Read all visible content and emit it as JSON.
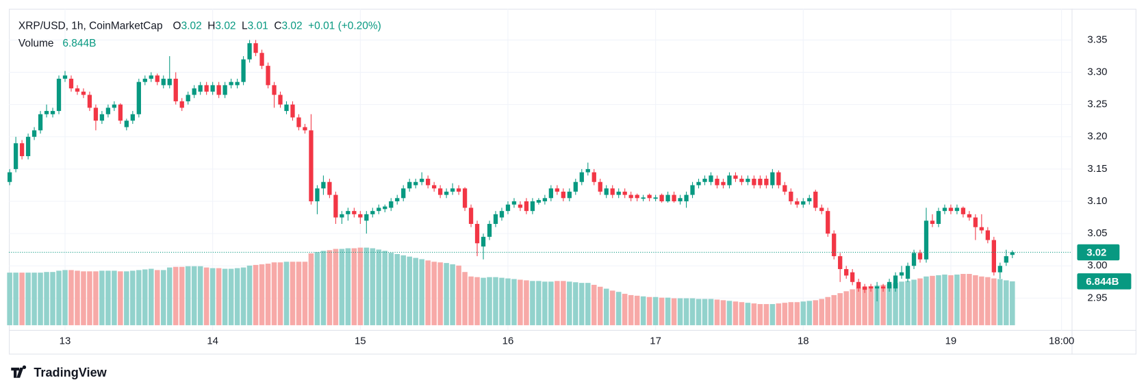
{
  "chart_data": {
    "type": "candlestick",
    "symbol": "XRP/USD, 1h, CoinMarketCap",
    "ohlc_header": [
      {
        "label": "O",
        "value": "3.02"
      },
      {
        "label": "H",
        "value": "3.02"
      },
      {
        "label": "L",
        "value": "3.01"
      },
      {
        "label": "C",
        "value": "3.02"
      }
    ],
    "change": "+0.01 (+0.20%)",
    "volume_title": "Volume",
    "volume_label": "6.844B",
    "last_price_label": "3.02",
    "brand": "TradingView",
    "up_color": "#089981",
    "down_color": "#f23645",
    "volume_up_color": "#92d2cc",
    "volume_down_color": "#f7a9a7",
    "grid": true,
    "xlim": [
      -0.12,
      172.7
    ],
    "xticks": [
      {
        "value": 9,
        "label": "13"
      },
      {
        "value": 33,
        "label": "14"
      },
      {
        "value": 57,
        "label": "15"
      },
      {
        "value": 81,
        "label": "16"
      },
      {
        "value": 105,
        "label": "17"
      },
      {
        "value": 129,
        "label": "18"
      },
      {
        "value": 153,
        "label": "19"
      },
      {
        "value": 171,
        "label": "18:00"
      }
    ],
    "ylim": [
      2.908,
      3.395
    ],
    "yticks": [
      2.95,
      {
        "value": 3,
        "label": "3.00"
      },
      3.05,
      {
        "value": 3.1,
        "label": "3.10"
      },
      3.15,
      {
        "value": 3.2,
        "label": "3.20"
      },
      3.25,
      {
        "value": 3.3,
        "label": "3.30"
      },
      3.35
    ],
    "volume_lim": [
      0,
      49
    ],
    "ohlc": [
      [
        3.13,
        3.15,
        3.125,
        3.145
      ],
      [
        3.15,
        3.2,
        3.145,
        3.19
      ],
      [
        3.19,
        3.195,
        3.165,
        3.17
      ],
      [
        3.17,
        3.205,
        3.165,
        3.2
      ],
      [
        3.2,
        3.215,
        3.195,
        3.21
      ],
      [
        3.21,
        3.24,
        3.205,
        3.235
      ],
      [
        3.235,
        3.25,
        3.23,
        3.24
      ],
      [
        3.235,
        3.245,
        3.23,
        3.24
      ],
      [
        3.24,
        3.295,
        3.235,
        3.29
      ],
      [
        3.29,
        3.302,
        3.285,
        3.295
      ],
      [
        3.29,
        3.295,
        3.27,
        3.275
      ],
      [
        3.275,
        3.28,
        3.265,
        3.27
      ],
      [
        3.27,
        3.275,
        3.26,
        3.265
      ],
      [
        3.265,
        3.27,
        3.24,
        3.245
      ],
      [
        3.245,
        3.25,
        3.21,
        3.225
      ],
      [
        3.225,
        3.24,
        3.22,
        3.235
      ],
      [
        3.235,
        3.25,
        3.23,
        3.245
      ],
      [
        3.245,
        3.255,
        3.24,
        3.25
      ],
      [
        3.25,
        3.252,
        3.22,
        3.225
      ],
      [
        3.215,
        3.228,
        3.21,
        3.225
      ],
      [
        3.225,
        3.24,
        3.22,
        3.235
      ],
      [
        3.235,
        3.29,
        3.23,
        3.285
      ],
      [
        3.285,
        3.295,
        3.28,
        3.29
      ],
      [
        3.29,
        3.3,
        3.285,
        3.295
      ],
      [
        3.295,
        3.298,
        3.28,
        3.285
      ],
      [
        3.28,
        3.295,
        3.275,
        3.29
      ],
      [
        3.28,
        3.325,
        3.275,
        3.29
      ],
      [
        3.29,
        3.3,
        3.25,
        3.255
      ],
      [
        3.255,
        3.26,
        3.24,
        3.245
      ],
      [
        3.255,
        3.27,
        3.25,
        3.265
      ],
      [
        3.265,
        3.28,
        3.26,
        3.275
      ],
      [
        3.27,
        3.285,
        3.265,
        3.28
      ],
      [
        3.28,
        3.285,
        3.265,
        3.27
      ],
      [
        3.27,
        3.285,
        3.265,
        3.28
      ],
      [
        3.28,
        3.285,
        3.26,
        3.265
      ],
      [
        3.265,
        3.285,
        3.26,
        3.28
      ],
      [
        3.28,
        3.29,
        3.275,
        3.285
      ],
      [
        3.28,
        3.29,
        3.275,
        3.285
      ],
      [
        3.285,
        3.325,
        3.28,
        3.32
      ],
      [
        3.32,
        3.35,
        3.315,
        3.345
      ],
      [
        3.345,
        3.35,
        3.325,
        3.33
      ],
      [
        3.33,
        3.335,
        3.305,
        3.31
      ],
      [
        3.31,
        3.315,
        3.275,
        3.28
      ],
      [
        3.28,
        3.285,
        3.245,
        3.265
      ],
      [
        3.265,
        3.27,
        3.245,
        3.25
      ],
      [
        3.24,
        3.255,
        3.235,
        3.25
      ],
      [
        3.25,
        3.255,
        3.225,
        3.23
      ],
      [
        3.23,
        3.235,
        3.21,
        3.215
      ],
      [
        3.215,
        3.22,
        3.205,
        3.21
      ],
      [
        3.21,
        3.235,
        3.095,
        3.1
      ],
      [
        3.1,
        3.125,
        3.08,
        3.12
      ],
      [
        3.12,
        3.14,
        3.11,
        3.13
      ],
      [
        3.13,
        3.135,
        3.105,
        3.11
      ],
      [
        3.11,
        3.115,
        3.065,
        3.075
      ],
      [
        3.075,
        3.085,
        3.065,
        3.08
      ],
      [
        3.08,
        3.09,
        3.07,
        3.085
      ],
      [
        3.085,
        3.09,
        3.075,
        3.08
      ],
      [
        3.08,
        3.085,
        3.065,
        3.075
      ],
      [
        3.07,
        3.085,
        3.05,
        3.08
      ],
      [
        3.08,
        3.09,
        3.075,
        3.085
      ],
      [
        3.085,
        3.095,
        3.08,
        3.09
      ],
      [
        3.088,
        3.095,
        3.083,
        3.092
      ],
      [
        3.09,
        3.105,
        3.085,
        3.1
      ],
      [
        3.1,
        3.11,
        3.095,
        3.105
      ],
      [
        3.105,
        3.125,
        3.1,
        3.12
      ],
      [
        3.12,
        3.135,
        3.115,
        3.13
      ],
      [
        3.125,
        3.135,
        3.12,
        3.13
      ],
      [
        3.13,
        3.145,
        3.125,
        3.135
      ],
      [
        3.135,
        3.14,
        3.12,
        3.125
      ],
      [
        3.125,
        3.13,
        3.115,
        3.12
      ],
      [
        3.12,
        3.125,
        3.105,
        3.11
      ],
      [
        3.11,
        3.12,
        3.105,
        3.115
      ],
      [
        3.115,
        3.128,
        3.11,
        3.12
      ],
      [
        3.12,
        3.125,
        3.11,
        3.115
      ],
      [
        3.12,
        3.122,
        3.085,
        3.09
      ],
      [
        3.09,
        3.095,
        3.06,
        3.065
      ],
      [
        3.065,
        3.07,
        3.015,
        3.035
      ],
      [
        3.03,
        3.05,
        3.01,
        3.045
      ],
      [
        3.045,
        3.07,
        3.04,
        3.065
      ],
      [
        3.065,
        3.085,
        3.06,
        3.08
      ],
      [
        3.075,
        3.09,
        3.07,
        3.085
      ],
      [
        3.085,
        3.1,
        3.08,
        3.095
      ],
      [
        3.095,
        3.105,
        3.09,
        3.1
      ],
      [
        3.095,
        3.1,
        3.085,
        3.09
      ],
      [
        3.1,
        3.105,
        3.08,
        3.085
      ],
      [
        3.085,
        3.105,
        3.08,
        3.1
      ],
      [
        3.098,
        3.105,
        3.095,
        3.102
      ],
      [
        3.1,
        3.11,
        3.095,
        3.105
      ],
      [
        3.105,
        3.125,
        3.1,
        3.12
      ],
      [
        3.12,
        3.125,
        3.11,
        3.115
      ],
      [
        3.115,
        3.12,
        3.1,
        3.105
      ],
      [
        3.105,
        3.12,
        3.1,
        3.115
      ],
      [
        3.115,
        3.135,
        3.11,
        3.13
      ],
      [
        3.13,
        3.15,
        3.125,
        3.145
      ],
      [
        3.145,
        3.16,
        3.14,
        3.15
      ],
      [
        3.145,
        3.15,
        3.125,
        3.13
      ],
      [
        3.13,
        3.135,
        3.11,
        3.115
      ],
      [
        3.11,
        3.125,
        3.105,
        3.12
      ],
      [
        3.12,
        3.125,
        3.105,
        3.11
      ],
      [
        3.11,
        3.12,
        3.105,
        3.115
      ],
      [
        3.115,
        3.12,
        3.105,
        3.11
      ],
      [
        3.11,
        3.115,
        3.1,
        3.105
      ],
      [
        3.11,
        3.112,
        3.1,
        3.105
      ],
      [
        3.104,
        3.11,
        3.1,
        3.106
      ],
      [
        3.11,
        3.112,
        3.1,
        3.105
      ],
      [
        3.104,
        3.11,
        3.1,
        3.106
      ],
      [
        3.11,
        3.112,
        3.098,
        3.1
      ],
      [
        3.1,
        3.115,
        3.098,
        3.11
      ],
      [
        3.11,
        3.115,
        3.098,
        3.1
      ],
      [
        3.1,
        3.11,
        3.095,
        3.105
      ],
      [
        3.1,
        3.115,
        3.09,
        3.11
      ],
      [
        3.11,
        3.13,
        3.105,
        3.125
      ],
      [
        3.125,
        3.135,
        3.12,
        3.13
      ],
      [
        3.13,
        3.14,
        3.125,
        3.135
      ],
      [
        3.13,
        3.145,
        3.125,
        3.14
      ],
      [
        3.135,
        3.14,
        3.12,
        3.125
      ],
      [
        3.13,
        3.135,
        3.12,
        3.125
      ],
      [
        3.125,
        3.145,
        3.12,
        3.14
      ],
      [
        3.14,
        3.145,
        3.13,
        3.135
      ],
      [
        3.135,
        3.14,
        3.125,
        3.13
      ],
      [
        3.13,
        3.14,
        3.125,
        3.135
      ],
      [
        3.135,
        3.14,
        3.12,
        3.125
      ],
      [
        3.135,
        3.14,
        3.12,
        3.125
      ],
      [
        3.135,
        3.14,
        3.12,
        3.125
      ],
      [
        3.125,
        3.15,
        3.12,
        3.145
      ],
      [
        3.145,
        3.148,
        3.12,
        3.125
      ],
      [
        3.125,
        3.13,
        3.11,
        3.115
      ],
      [
        3.115,
        3.12,
        3.095,
        3.1
      ],
      [
        3.1,
        3.105,
        3.09,
        3.095
      ],
      [
        3.095,
        3.105,
        3.09,
        3.1
      ],
      [
        3.1,
        3.11,
        3.095,
        3.105
      ],
      [
        3.115,
        3.118,
        3.085,
        3.09
      ],
      [
        3.09,
        3.095,
        3.08,
        3.085
      ],
      [
        3.085,
        3.09,
        3.045,
        3.05
      ],
      [
        3.05,
        3.055,
        3.01,
        3.015
      ],
      [
        3.015,
        3.02,
        2.975,
        2.995
      ],
      [
        2.995,
        3.0,
        2.98,
        2.985
      ],
      [
        2.99,
        2.995,
        2.97,
        2.975
      ],
      [
        2.975,
        2.98,
        2.96,
        2.965
      ],
      [
        2.968,
        2.972,
        2.958,
        2.963
      ],
      [
        2.968,
        2.972,
        2.96,
        2.965
      ],
      [
        2.965,
        2.975,
        2.945,
        2.968
      ],
      [
        2.968,
        2.972,
        2.96,
        2.965
      ],
      [
        2.965,
        2.98,
        2.96,
        2.975
      ],
      [
        2.965,
        2.99,
        2.96,
        2.985
      ],
      [
        2.985,
        3.0,
        2.98,
        2.99
      ],
      [
        2.98,
        3.005,
        2.975,
        3.0
      ],
      [
        3.0,
        3.025,
        2.995,
        3.02
      ],
      [
        3.02,
        3.025,
        3.005,
        3.01
      ],
      [
        3.01,
        3.09,
        3.005,
        3.07
      ],
      [
        3.07,
        3.08,
        3.06,
        3.065
      ],
      [
        3.065,
        3.09,
        3.06,
        3.085
      ],
      [
        3.085,
        3.095,
        3.08,
        3.09
      ],
      [
        3.09,
        3.095,
        3.08,
        3.085
      ],
      [
        3.085,
        3.095,
        3.08,
        3.09
      ],
      [
        3.09,
        3.092,
        3.075,
        3.08
      ],
      [
        3.08,
        3.085,
        3.07,
        3.075
      ],
      [
        3.075,
        3.08,
        3.04,
        3.06
      ],
      [
        3.06,
        3.08,
        3.05,
        3.055
      ],
      [
        3.055,
        3.06,
        3.035,
        3.04
      ],
      [
        3.04,
        3.045,
        2.985,
        2.99
      ],
      [
        2.99,
        3.005,
        2.98,
        3.0
      ],
      [
        3.005,
        3.025,
        3.0,
        3.015
      ],
      [
        3.017,
        3.024,
        3.012,
        3.021
      ]
    ],
    "volume": [
      8.2,
      8.2,
      8.2,
      8.2,
      8.2,
      8.2,
      8.3,
      8.3,
      8.5,
      8.6,
      8.6,
      8.5,
      8.4,
      8.4,
      8.4,
      8.5,
      8.5,
      8.5,
      8.4,
      8.4,
      8.5,
      8.6,
      8.7,
      8.8,
      8.6,
      8.6,
      9.0,
      9.1,
      9.1,
      9.2,
      9.2,
      9.2,
      9.0,
      8.9,
      8.9,
      8.8,
      8.8,
      8.9,
      9.0,
      9.3,
      9.4,
      9.5,
      9.6,
      9.8,
      9.8,
      9.9,
      9.9,
      9.9,
      9.9,
      11.2,
      11.4,
      11.6,
      11.7,
      11.9,
      11.9,
      12.0,
      12.0,
      12.1,
      12.1,
      12.0,
      11.8,
      11.6,
      11.3,
      11.1,
      10.9,
      10.7,
      10.5,
      10.3,
      10.1,
      9.9,
      9.8,
      9.7,
      9.5,
      9.3,
      8.3,
      7.6,
      7.5,
      7.4,
      7.5,
      7.5,
      7.4,
      7.3,
      7.2,
      7.1,
      7.0,
      6.9,
      6.9,
      6.8,
      6.8,
      6.9,
      6.9,
      6.8,
      6.7,
      6.6,
      6.6,
      6.3,
      6.0,
      5.7,
      5.4,
      5.2,
      4.9,
      4.7,
      4.6,
      4.5,
      4.4,
      4.4,
      4.3,
      4.3,
      4.2,
      4.2,
      4.2,
      4.2,
      4.1,
      4.1,
      4.1,
      4.0,
      3.9,
      3.8,
      3.7,
      3.6,
      3.5,
      3.4,
      3.3,
      3.3,
      3.3,
      3.4,
      3.5,
      3.6,
      3.6,
      3.7,
      3.8,
      3.9,
      4.1,
      4.4,
      4.7,
      5.0,
      5.3,
      5.6,
      5.8,
      6.0,
      6.1,
      6.2,
      6.3,
      6.4,
      6.6,
      6.8,
      6.9,
      7.1,
      7.3,
      7.6,
      7.7,
      7.8,
      7.9,
      7.8,
      7.9,
      8.0,
      8.0,
      7.8,
      7.6,
      7.5,
      7.3,
      7.2,
      7.0,
      6.844
    ]
  }
}
